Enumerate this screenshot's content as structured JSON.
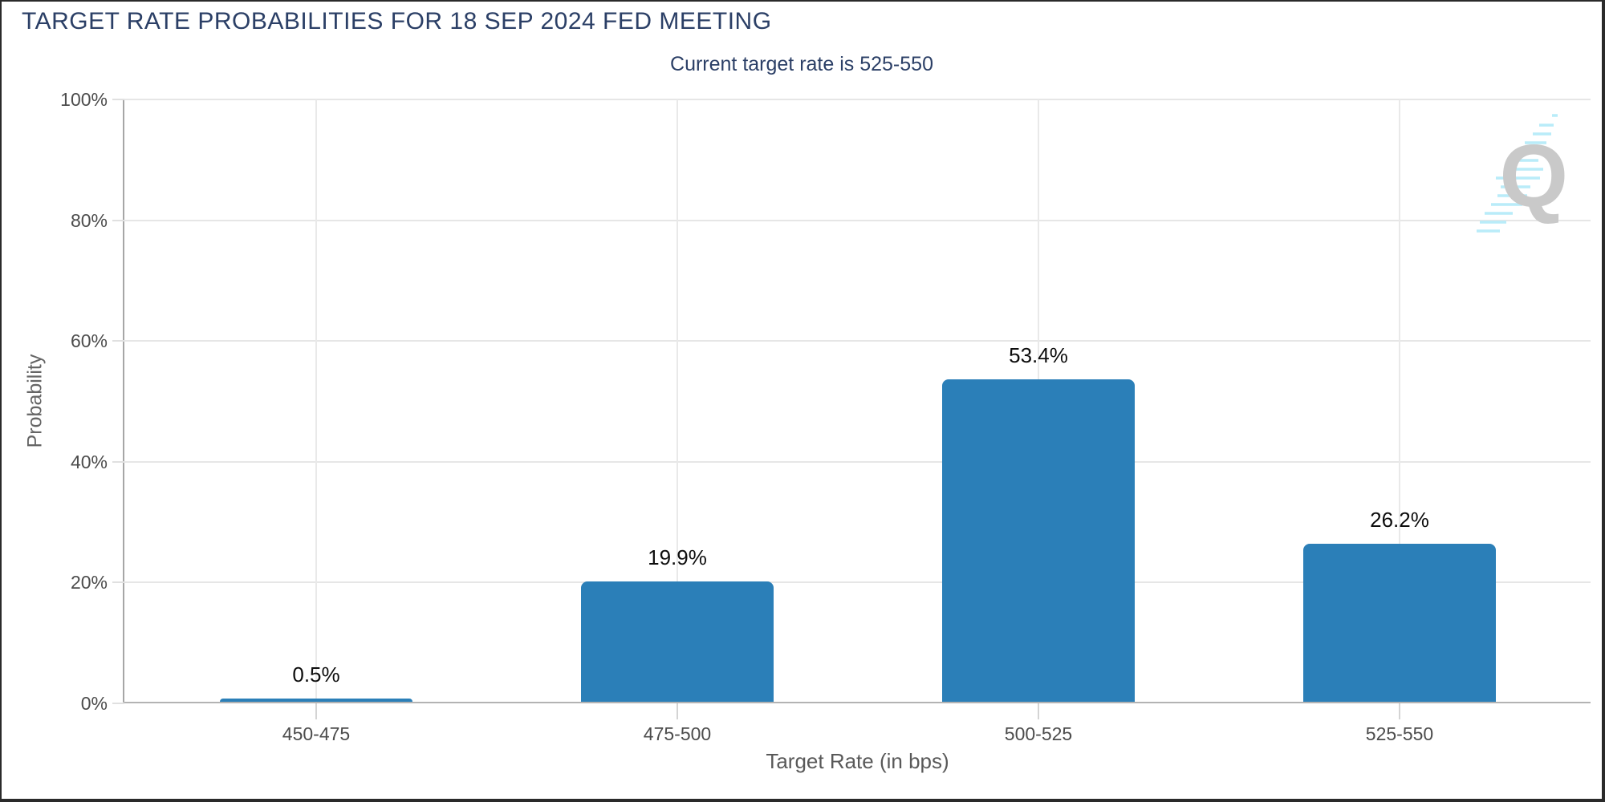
{
  "header": {
    "title": "TARGET RATE PROBABILITIES FOR 18 SEP 2024 FED MEETING",
    "subtitle": "Current target rate is 525-550"
  },
  "chart_data": {
    "type": "bar",
    "title": "TARGET RATE PROBABILITIES FOR 18 SEP 2024 FED MEETING",
    "subtitle": "Current target rate is 525-550",
    "categories": [
      "450-475",
      "475-500",
      "500-525",
      "525-550"
    ],
    "values": [
      0.5,
      19.9,
      53.4,
      26.2
    ],
    "bar_labels": [
      "0.5%",
      "19.9%",
      "53.4%",
      "26.2%"
    ],
    "xlabel": "Target Rate (in bps)",
    "ylabel": "Probability",
    "ylim": [
      0,
      100
    ],
    "yticks": [
      0,
      20,
      40,
      60,
      80,
      100
    ],
    "ytick_labels": [
      "0%",
      "20%",
      "40%",
      "60%",
      "80%",
      "100%"
    ],
    "grid": true,
    "legend": "none",
    "bar_color": "#2b7fb8"
  },
  "watermark": {
    "letter": "Q",
    "letter_color": "#c9c9c9",
    "streak_color": "#b9ecf9"
  },
  "colors": {
    "title_text": "#2b3f66",
    "axis_line": "#a6a6a6",
    "gridline": "#e6e6e6",
    "tick_text": "#4c4c4c",
    "bar_value_text": "#0d0d0d"
  }
}
